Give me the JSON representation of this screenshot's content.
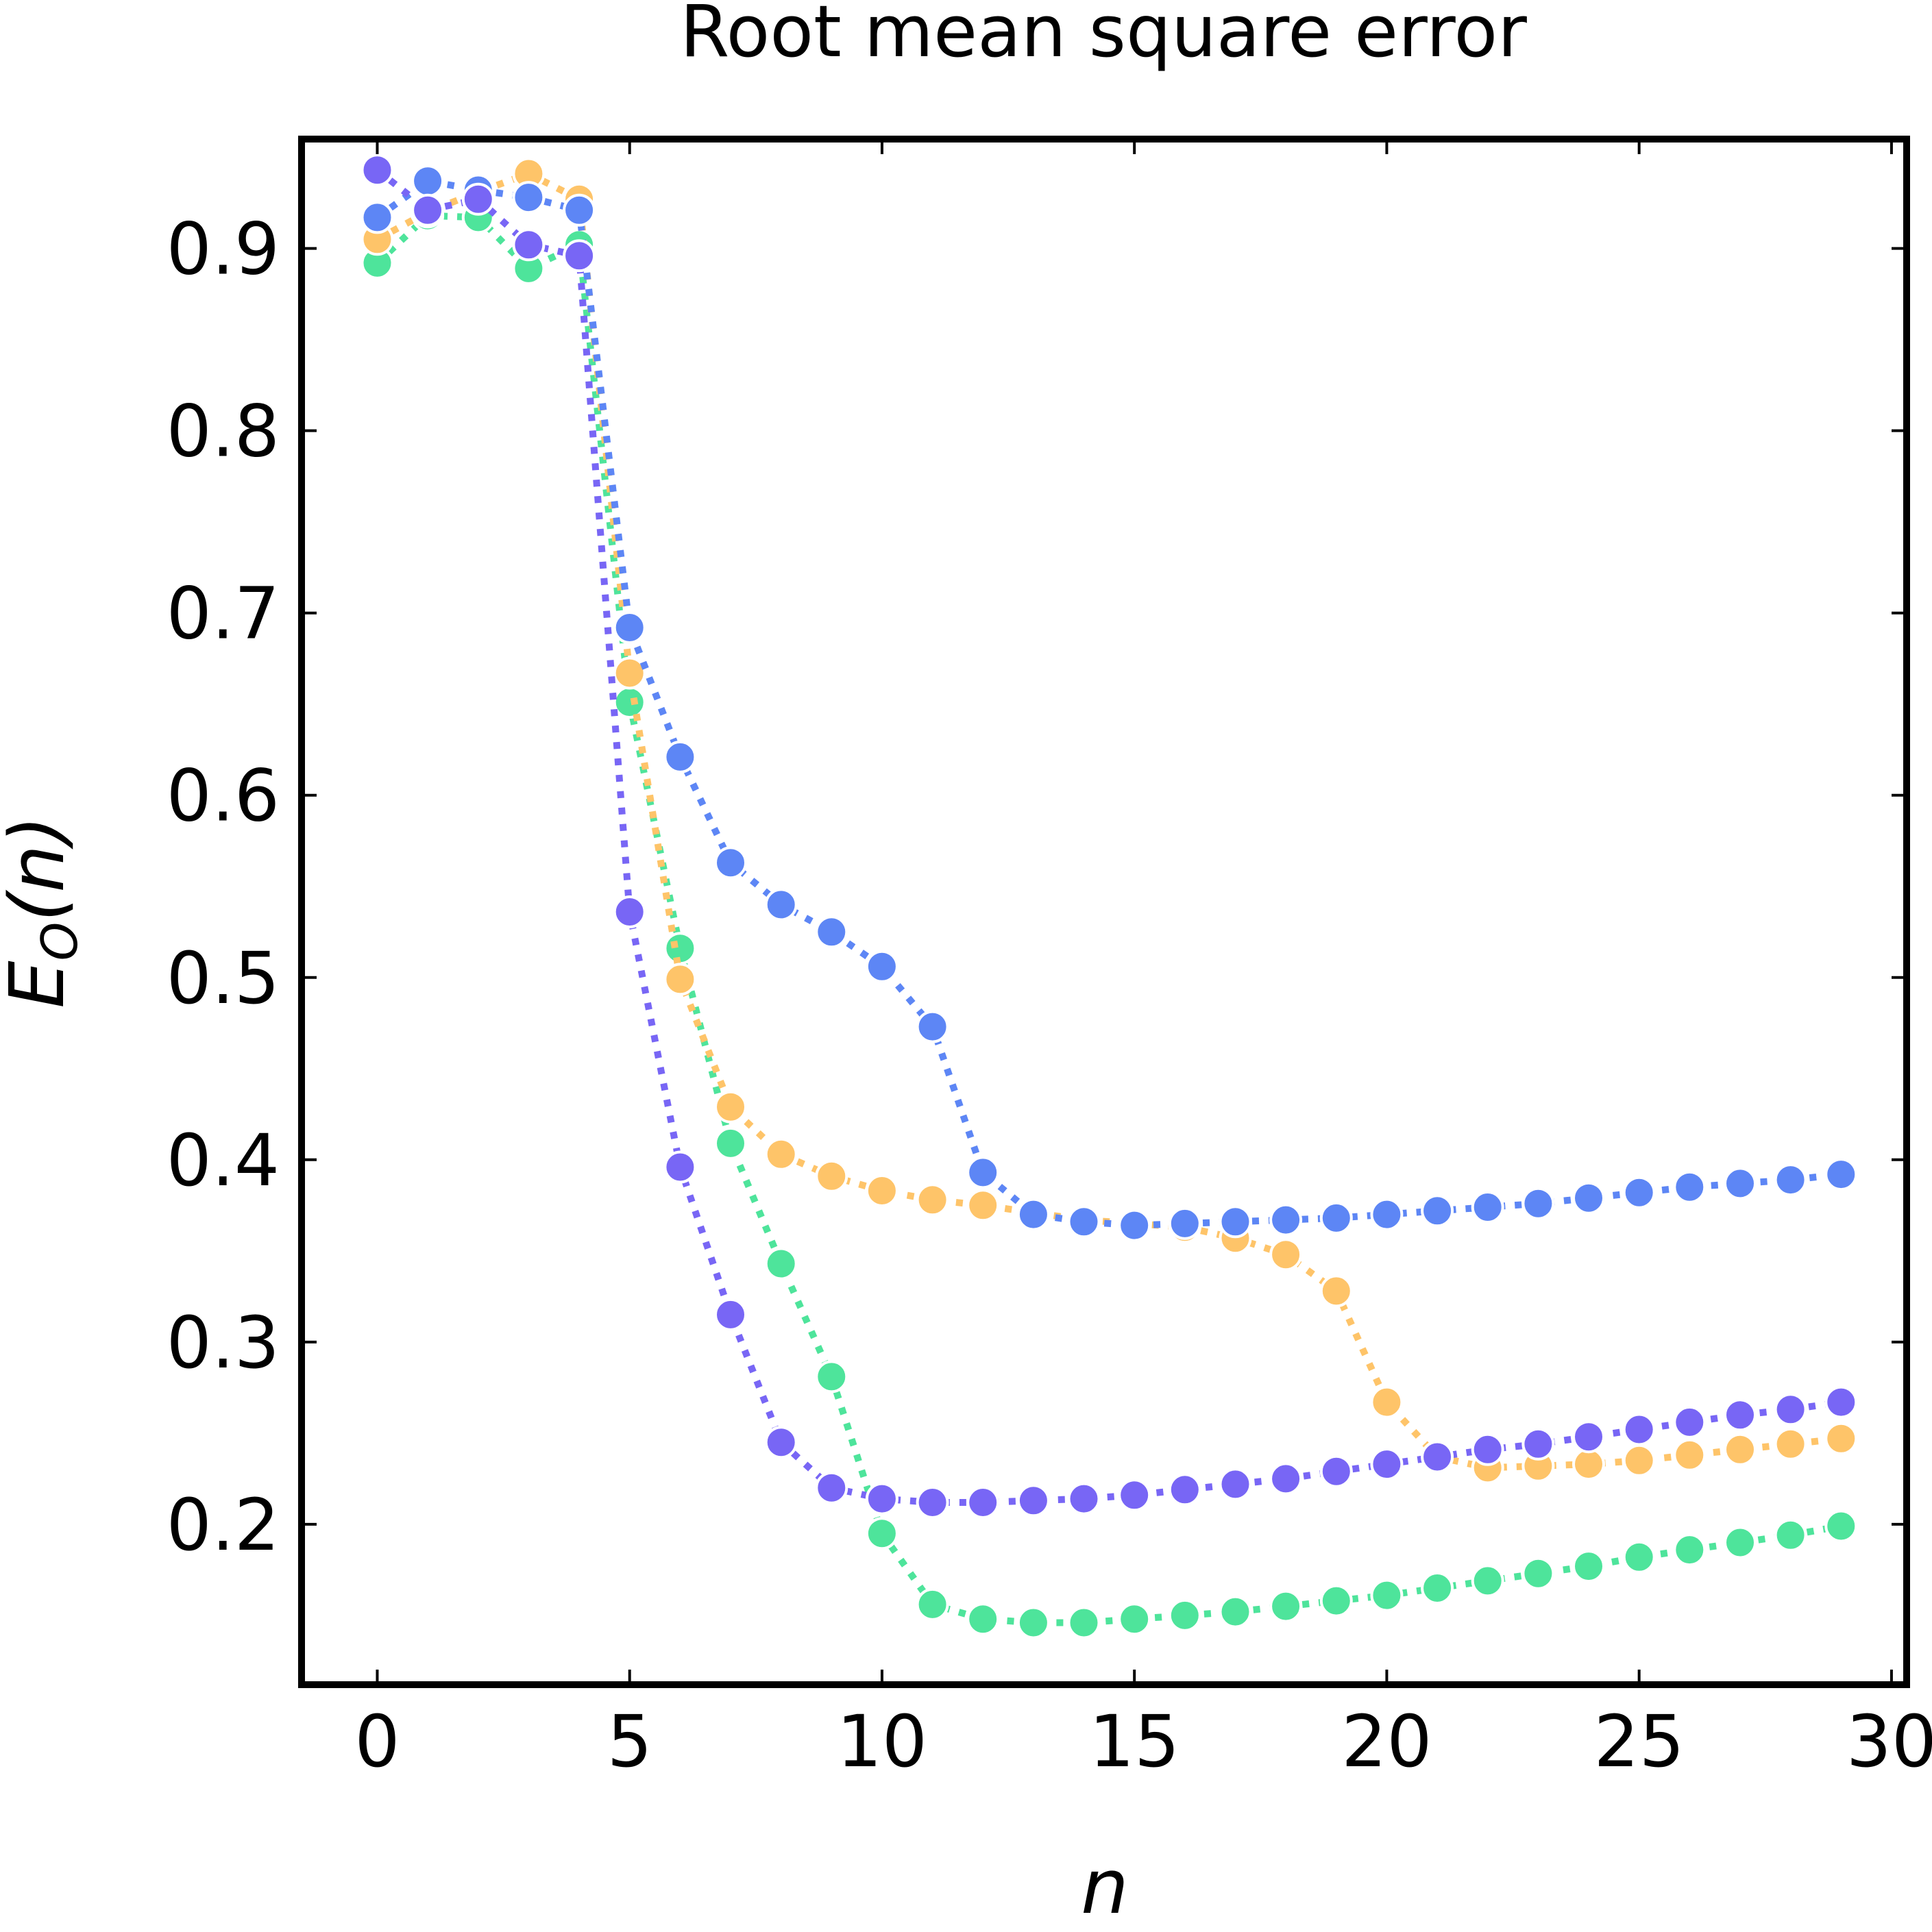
{
  "chart_data": {
    "type": "scatter",
    "title": "Root mean square error",
    "xlabel": "n",
    "ylabel": "E",
    "ylabel_subscript": "O",
    "ylabel_suffix": "(n)",
    "xlim": [
      -1.5,
      30.3
    ],
    "ylim": [
      0.112,
      0.96
    ],
    "xticks": [
      0,
      5,
      10,
      15,
      20,
      25,
      30
    ],
    "yticks": [
      0.2,
      0.3,
      0.4,
      0.5,
      0.6,
      0.7,
      0.8,
      0.9
    ],
    "grid": false,
    "line_style": "dotted",
    "series": [
      {
        "color": "#4ee49b",
        "x": [
          0,
          1,
          2,
          3,
          4,
          5,
          6,
          7,
          8,
          9,
          10,
          11,
          12,
          13,
          14,
          15,
          16,
          17,
          18,
          19,
          20,
          21,
          22,
          23,
          24,
          25,
          26,
          27,
          28,
          29
        ],
        "y": [
          0.892,
          0.918,
          0.917,
          0.889,
          0.902,
          0.651,
          0.516,
          0.409,
          0.343,
          0.281,
          0.195,
          0.156,
          0.148,
          0.146,
          0.146,
          0.148,
          0.15,
          0.152,
          0.155,
          0.158,
          0.161,
          0.165,
          0.169,
          0.173,
          0.177,
          0.182,
          0.186,
          0.19,
          0.194,
          0.199
        ]
      },
      {
        "color": "#fec469",
        "x": [
          0,
          1,
          2,
          3,
          4,
          5,
          6,
          7,
          8,
          9,
          10,
          11,
          12,
          13,
          14,
          15,
          16,
          17,
          18,
          19,
          20,
          21,
          22,
          23,
          24,
          25,
          26,
          27,
          28,
          29
        ],
        "y": [
          0.905,
          0.92,
          0.931,
          0.941,
          0.927,
          0.667,
          0.499,
          0.429,
          0.403,
          0.391,
          0.383,
          0.378,
          0.375,
          0.371,
          0.367,
          0.365,
          0.363,
          0.357,
          0.348,
          0.328,
          0.267,
          0.237,
          0.231,
          0.232,
          0.233,
          0.235,
          0.238,
          0.241,
          0.244,
          0.247
        ]
      },
      {
        "color": "#5d86f5",
        "x": [
          0,
          1,
          2,
          3,
          4,
          5,
          6,
          7,
          8,
          9,
          10,
          11,
          12,
          13,
          14,
          15,
          16,
          17,
          18,
          19,
          20,
          21,
          22,
          23,
          24,
          25,
          26,
          27,
          28,
          29
        ],
        "y": [
          0.917,
          0.937,
          0.932,
          0.928,
          0.921,
          0.692,
          0.621,
          0.563,
          0.54,
          0.525,
          0.506,
          0.473,
          0.393,
          0.37,
          0.366,
          0.364,
          0.365,
          0.366,
          0.367,
          0.368,
          0.37,
          0.372,
          0.374,
          0.376,
          0.379,
          0.382,
          0.385,
          0.387,
          0.389,
          0.392
        ]
      },
      {
        "color": "#7866f5",
        "x": [
          0,
          1,
          2,
          3,
          4,
          5,
          6,
          7,
          8,
          9,
          10,
          11,
          12,
          13,
          14,
          15,
          16,
          17,
          18,
          19,
          20,
          21,
          22,
          23,
          24,
          25,
          26,
          27,
          28,
          29
        ],
        "y": [
          0.943,
          0.921,
          0.927,
          0.902,
          0.896,
          0.536,
          0.396,
          0.315,
          0.245,
          0.22,
          0.214,
          0.212,
          0.212,
          0.213,
          0.214,
          0.216,
          0.219,
          0.222,
          0.225,
          0.229,
          0.233,
          0.237,
          0.241,
          0.244,
          0.248,
          0.252,
          0.256,
          0.26,
          0.263,
          0.267
        ]
      }
    ]
  }
}
